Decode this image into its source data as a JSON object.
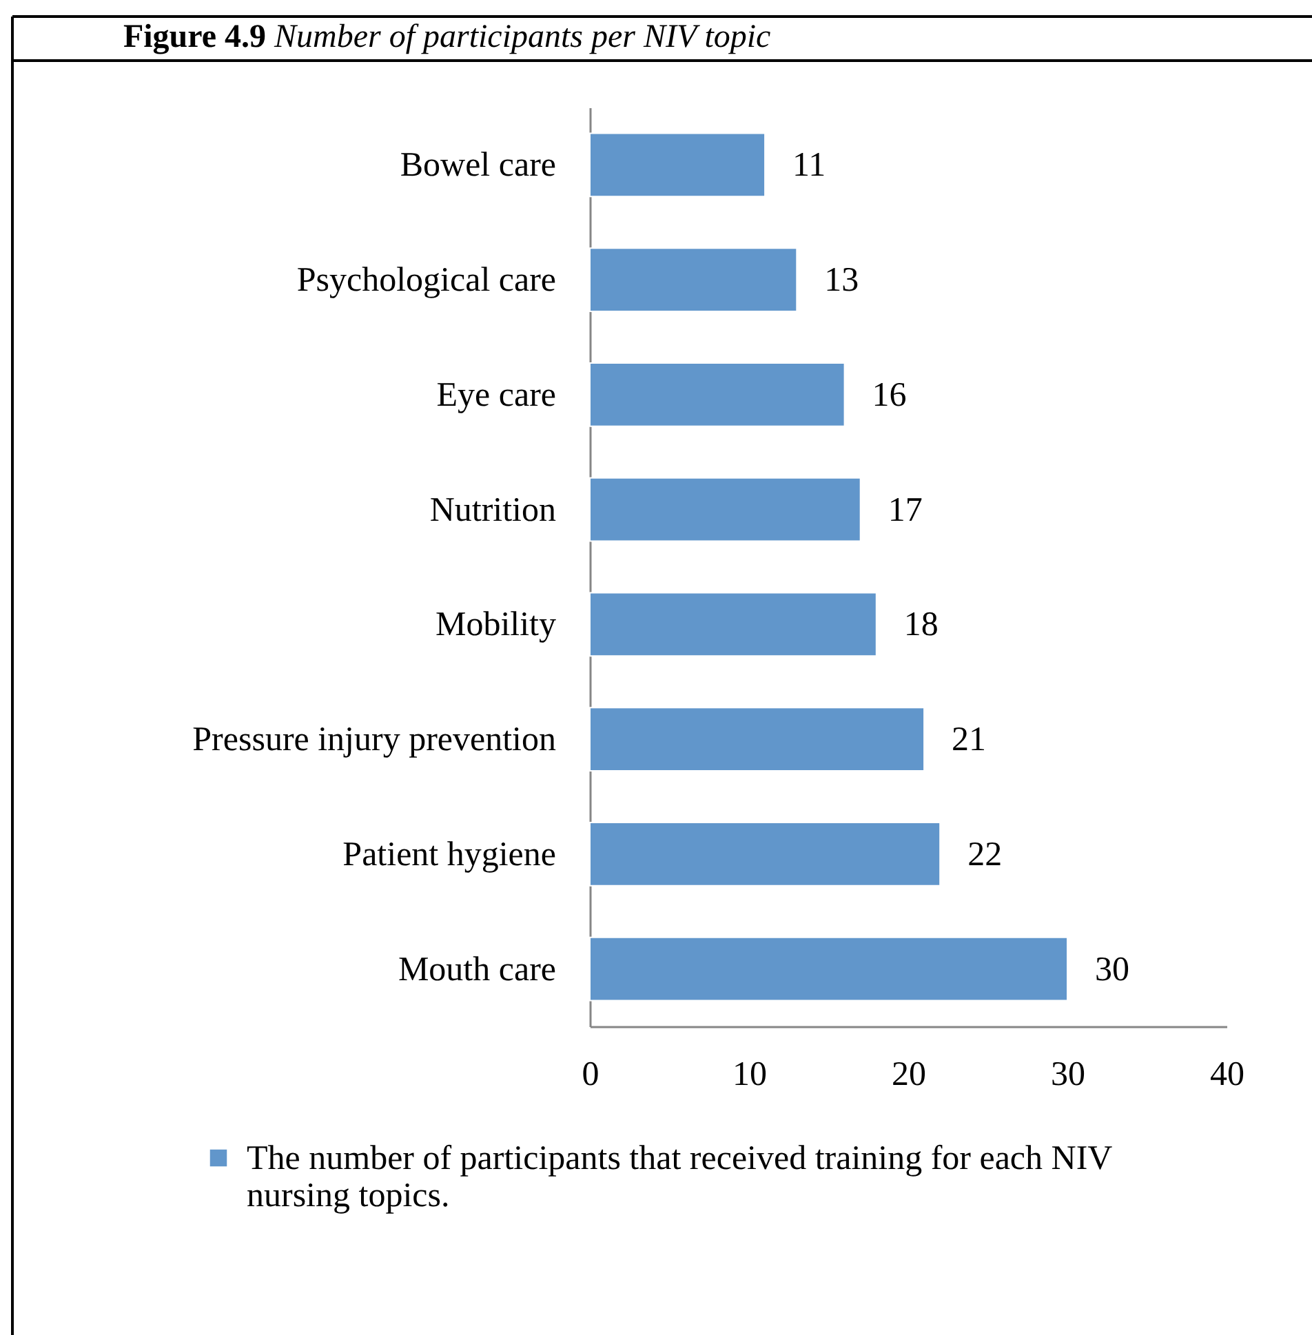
{
  "chart_data": {
    "type": "bar",
    "orientation": "horizontal",
    "title": "Figure 4.9",
    "subtitle": "Number of participants per NIV topic",
    "categories": [
      "Bowel care",
      "Psychological care",
      "Eye care",
      "Nutrition",
      "Mobility",
      "Pressure injury prevention",
      "Patient hygiene",
      "Mouth care"
    ],
    "series": [
      {
        "name": "The number of participants that received training for each NIV nursing topics.",
        "color": "#6196cb",
        "values": [
          11,
          13,
          16,
          17,
          18,
          21,
          22,
          30
        ]
      }
    ],
    "xlim": [
      0,
      40
    ],
    "xticks": [
      0,
      10,
      20,
      30,
      40
    ],
    "grid": false,
    "legend": "bottom",
    "data_labels": true
  }
}
